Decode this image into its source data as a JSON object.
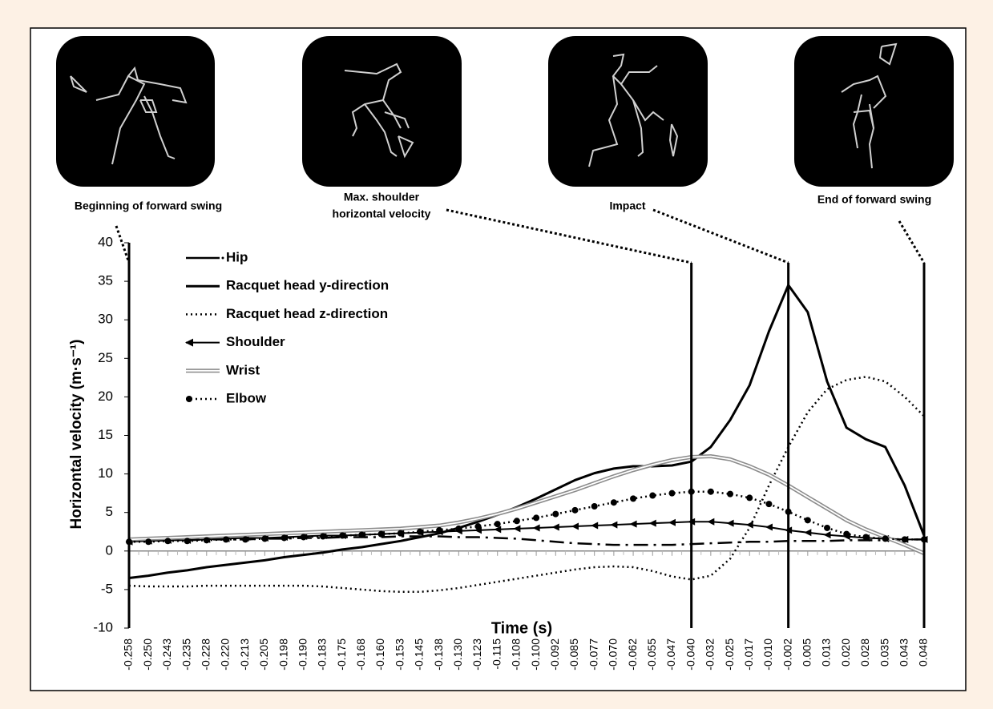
{
  "chart_data": {
    "type": "line",
    "xlabel": "Time (s)",
    "ylabel": "Horizontal velocity (m·s⁻¹)",
    "annotations": [
      [
        "Beginning of forward swing"
      ],
      [
        "Max. shoulder",
        "horizontal velocity"
      ],
      [
        "Impact"
      ],
      [
        "End of forward swing"
      ]
    ],
    "categories": [
      "-0.258",
      "-0.250",
      "-0.243",
      "-0.235",
      "-0.228",
      "-0.220",
      "-0.213",
      "-0.205",
      "-0.198",
      "-0.190",
      "-0.183",
      "-0.175",
      "-0.168",
      "-0.160",
      "-0.153",
      "-0.145",
      "-0.138",
      "-0.130",
      "-0.123",
      "-0.115",
      "-0.108",
      "-0.100",
      "-0.092",
      "-0.085",
      "-0.077",
      "-0.070",
      "-0.062",
      "-0.055",
      "-0.047",
      "-0.040",
      "-0.032",
      "-0.025",
      "-0.017",
      "-0.010",
      "-0.002",
      "0.005",
      "0.013",
      "0.020",
      "0.028",
      "0.035",
      "0.043",
      "0.048"
    ],
    "ylim": [
      -10,
      40
    ],
    "yticks": [
      -10,
      -5,
      0,
      5,
      10,
      15,
      20,
      25,
      30,
      35,
      40
    ],
    "series": [
      {
        "name": "Hip",
        "color": "#000000",
        "values": [
          1.3,
          1.3,
          1.4,
          1.4,
          1.5,
          1.5,
          1.5,
          1.6,
          1.6,
          1.7,
          1.7,
          1.8,
          1.8,
          1.8,
          1.9,
          1.9,
          1.9,
          1.8,
          1.8,
          1.7,
          1.6,
          1.4,
          1.2,
          1.0,
          0.9,
          0.8,
          0.8,
          0.8,
          0.8,
          0.9,
          1.0,
          1.1,
          1.2,
          1.2,
          1.3,
          1.3,
          1.3,
          1.4,
          1.4,
          1.4,
          1.5,
          1.5
        ]
      },
      {
        "name": "Racquet head y-direction",
        "color": "#000000",
        "values": [
          -3.5,
          -3.2,
          -2.8,
          -2.5,
          -2.1,
          -1.8,
          -1.5,
          -1.2,
          -0.8,
          -0.5,
          -0.2,
          0.2,
          0.5,
          0.9,
          1.3,
          1.8,
          2.3,
          3.0,
          3.8,
          4.7,
          5.7,
          6.8,
          8.0,
          9.2,
          10.1,
          10.7,
          11.0,
          11.0,
          11.1,
          11.6,
          13.5,
          17.0,
          21.5,
          28.5,
          34.5,
          31.0,
          22.0,
          16.0,
          14.5,
          13.5,
          8.5,
          2.0
        ]
      },
      {
        "name": "Racquet head z-direction",
        "color": "#000000",
        "values": [
          -4.5,
          -4.6,
          -4.6,
          -4.6,
          -4.5,
          -4.5,
          -4.5,
          -4.5,
          -4.5,
          -4.5,
          -4.6,
          -4.8,
          -5.0,
          -5.2,
          -5.3,
          -5.3,
          -5.1,
          -4.8,
          -4.4,
          -4.0,
          -3.6,
          -3.2,
          -2.8,
          -2.4,
          -2.1,
          -2.0,
          -2.1,
          -2.6,
          -3.3,
          -3.7,
          -3.2,
          -1.0,
          3.0,
          8.5,
          13.5,
          18.0,
          21.0,
          22.2,
          22.6,
          22.0,
          20.0,
          17.5
        ]
      },
      {
        "name": "Shoulder",
        "color": "#000000",
        "values": [
          1.2,
          1.3,
          1.4,
          1.4,
          1.5,
          1.6,
          1.7,
          1.7,
          1.8,
          1.9,
          2.0,
          2.0,
          2.1,
          2.2,
          2.3,
          2.4,
          2.5,
          2.6,
          2.7,
          2.8,
          2.9,
          3.0,
          3.1,
          3.2,
          3.3,
          3.4,
          3.5,
          3.6,
          3.7,
          3.8,
          3.8,
          3.6,
          3.4,
          3.1,
          2.7,
          2.4,
          2.1,
          1.9,
          1.7,
          1.6,
          1.5,
          1.5
        ]
      },
      {
        "name": "Wrist",
        "color": "#8c8c8c",
        "values": [
          1.5,
          1.6,
          1.7,
          1.8,
          1.9,
          2.0,
          2.1,
          2.2,
          2.3,
          2.4,
          2.5,
          2.6,
          2.7,
          2.8,
          2.9,
          3.1,
          3.3,
          3.7,
          4.2,
          4.8,
          5.5,
          6.3,
          7.1,
          7.9,
          8.8,
          9.7,
          10.5,
          11.2,
          11.8,
          12.2,
          12.3,
          11.9,
          11.0,
          9.9,
          8.5,
          7.0,
          5.5,
          4.0,
          2.8,
          1.8,
          0.8,
          -0.3
        ]
      },
      {
        "name": "Elbow",
        "color": "#000000",
        "values": [
          1.2,
          1.2,
          1.3,
          1.3,
          1.4,
          1.5,
          1.5,
          1.6,
          1.7,
          1.8,
          1.9,
          2.0,
          2.1,
          2.2,
          2.3,
          2.5,
          2.7,
          2.9,
          3.2,
          3.5,
          3.9,
          4.3,
          4.8,
          5.3,
          5.8,
          6.3,
          6.8,
          7.2,
          7.5,
          7.7,
          7.7,
          7.4,
          6.9,
          6.1,
          5.1,
          4.0,
          3.0,
          2.2,
          1.8,
          1.6,
          1.5,
          1.5
        ]
      }
    ]
  }
}
